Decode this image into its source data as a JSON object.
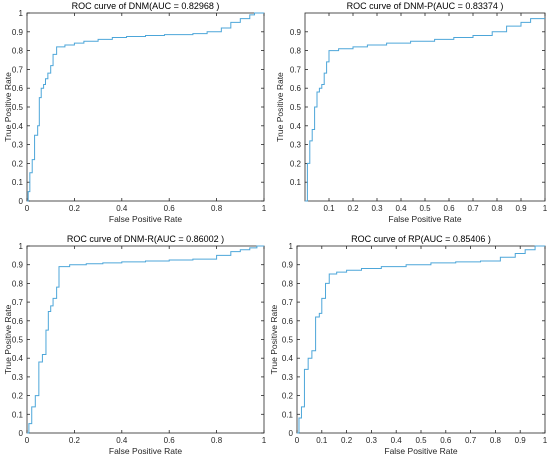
{
  "figure": {
    "background": "#ffffff",
    "axis_color": "#262626",
    "grid_color": "#d9d9d9"
  },
  "chart_data": [
    {
      "type": "line",
      "title": "ROC curve of DNM(AUC = 0.82968 )",
      "xlabel": "False Positive Rate",
      "ylabel": "True Positive Rate",
      "xlim": [
        0,
        1
      ],
      "ylim": [
        0,
        1
      ],
      "xticks": [
        0,
        0.2,
        0.4,
        0.6,
        0.8,
        1
      ],
      "xtick_labels": [
        "0",
        "0.2",
        "0.4",
        "0.6",
        "0.8",
        "1"
      ],
      "yticks": [
        0,
        0.1,
        0.2,
        0.3,
        0.4,
        0.5,
        0.6,
        0.7,
        0.8,
        0.9,
        1
      ],
      "ytick_labels": [
        "0",
        "0.1",
        "0.2",
        "0.3",
        "0.4",
        "0.5",
        "0.6",
        "0.7",
        "0.8",
        "0.9",
        "1"
      ],
      "grid": false,
      "color": "#4da6d9",
      "series": [
        {
          "x": [
            0,
            0.005,
            0.005,
            0.012,
            0.012,
            0.022,
            0.022,
            0.032,
            0.032,
            0.045,
            0.045,
            0.052,
            0.052,
            0.06,
            0.06,
            0.07,
            0.07,
            0.078,
            0.078,
            0.088,
            0.088,
            0.1,
            0.1,
            0.11,
            0.11,
            0.125,
            0.125,
            0.16,
            0.16,
            0.2,
            0.2,
            0.24,
            0.24,
            0.3,
            0.3,
            0.36,
            0.36,
            0.42,
            0.42,
            0.5,
            0.5,
            0.58,
            0.58,
            0.7,
            0.7,
            0.76,
            0.76,
            0.82,
            0.82,
            0.86,
            0.86,
            0.9,
            0.9,
            0.94,
            0.94,
            0.96,
            0.96,
            1
          ],
          "y": [
            0,
            0,
            0.05,
            0.05,
            0.15,
            0.15,
            0.22,
            0.22,
            0.35,
            0.35,
            0.4,
            0.4,
            0.55,
            0.55,
            0.6,
            0.6,
            0.62,
            0.62,
            0.65,
            0.65,
            0.68,
            0.68,
            0.72,
            0.72,
            0.78,
            0.78,
            0.82,
            0.82,
            0.83,
            0.83,
            0.84,
            0.84,
            0.85,
            0.85,
            0.86,
            0.86,
            0.87,
            0.87,
            0.875,
            0.875,
            0.88,
            0.88,
            0.885,
            0.885,
            0.89,
            0.89,
            0.9,
            0.9,
            0.92,
            0.92,
            0.95,
            0.95,
            0.97,
            0.97,
            0.99,
            0.99,
            1,
            1
          ]
        }
      ]
    },
    {
      "type": "line",
      "title": "ROC curve of DNM-P(AUC = 0.83374 )",
      "xlabel": "False Positive Rate",
      "ylabel": "True Positive Rate",
      "xlim": [
        0,
        1
      ],
      "ylim": [
        0,
        1
      ],
      "xticks": [
        0.1,
        0.2,
        0.3,
        0.4,
        0.5,
        0.6,
        0.7,
        0.8,
        0.9,
        1
      ],
      "xtick_labels": [
        "0.1",
        "0.2",
        "0.3",
        "0.4",
        "0.5",
        "0.6",
        "0.7",
        "0.8",
        "0.9",
        "1"
      ],
      "yticks": [
        0.1,
        0.2,
        0.3,
        0.4,
        0.5,
        0.6,
        0.7,
        0.8,
        0.9
      ],
      "ytick_labels": [
        "0.1",
        "0.2",
        "0.3",
        "0.4",
        "0.5",
        "0.6",
        "0.7",
        "0.8",
        "0.9"
      ],
      "grid": false,
      "color": "#4da6d9",
      "series": [
        {
          "x": [
            0,
            0.01,
            0.01,
            0.02,
            0.02,
            0.03,
            0.03,
            0.04,
            0.04,
            0.05,
            0.05,
            0.06,
            0.06,
            0.07,
            0.07,
            0.08,
            0.08,
            0.09,
            0.09,
            0.1,
            0.1,
            0.14,
            0.14,
            0.2,
            0.2,
            0.26,
            0.26,
            0.34,
            0.34,
            0.44,
            0.44,
            0.54,
            0.54,
            0.62,
            0.62,
            0.7,
            0.7,
            0.78,
            0.78,
            0.84,
            0.84,
            0.9,
            0.9,
            0.94,
            0.94,
            1
          ],
          "y": [
            0,
            0,
            0.2,
            0.2,
            0.32,
            0.32,
            0.38,
            0.38,
            0.5,
            0.5,
            0.58,
            0.58,
            0.6,
            0.6,
            0.62,
            0.62,
            0.68,
            0.68,
            0.74,
            0.74,
            0.8,
            0.8,
            0.81,
            0.81,
            0.82,
            0.82,
            0.83,
            0.83,
            0.84,
            0.84,
            0.85,
            0.85,
            0.86,
            0.86,
            0.87,
            0.87,
            0.88,
            0.88,
            0.9,
            0.9,
            0.93,
            0.93,
            0.95,
            0.95,
            0.97,
            0.97
          ]
        }
      ]
    },
    {
      "type": "line",
      "title": "ROC curve of DNM-R(AUC = 0.86002 )",
      "xlabel": "False Positive Rate",
      "ylabel": "True Positive Rate",
      "xlim": [
        0,
        1
      ],
      "ylim": [
        0,
        1
      ],
      "xticks": [
        0,
        0.2,
        0.4,
        0.6,
        0.8,
        1
      ],
      "xtick_labels": [
        "0",
        "0.2",
        "0.4",
        "0.6",
        "0.8",
        "1"
      ],
      "yticks": [
        0,
        0.1,
        0.2,
        0.3,
        0.4,
        0.5,
        0.6,
        0.7,
        0.8,
        0.9,
        1
      ],
      "ytick_labels": [
        "0",
        "0.1",
        "0.2",
        "0.3",
        "0.4",
        "0.5",
        "0.6",
        "0.7",
        "0.8",
        "0.9",
        "1"
      ],
      "grid": false,
      "color": "#4da6d9",
      "series": [
        {
          "x": [
            0,
            0.008,
            0.008,
            0.02,
            0.02,
            0.035,
            0.035,
            0.05,
            0.05,
            0.065,
            0.065,
            0.08,
            0.08,
            0.09,
            0.09,
            0.1,
            0.1,
            0.11,
            0.11,
            0.125,
            0.125,
            0.135,
            0.135,
            0.18,
            0.18,
            0.25,
            0.25,
            0.32,
            0.32,
            0.4,
            0.4,
            0.5,
            0.5,
            0.6,
            0.6,
            0.7,
            0.7,
            0.8,
            0.8,
            0.86,
            0.86,
            0.9,
            0.9,
            0.94,
            0.94,
            0.97,
            0.97,
            1
          ],
          "y": [
            0,
            0,
            0.05,
            0.05,
            0.14,
            0.14,
            0.2,
            0.2,
            0.38,
            0.38,
            0.42,
            0.42,
            0.55,
            0.55,
            0.65,
            0.65,
            0.68,
            0.68,
            0.72,
            0.72,
            0.78,
            0.78,
            0.89,
            0.89,
            0.9,
            0.9,
            0.905,
            0.905,
            0.91,
            0.91,
            0.915,
            0.915,
            0.92,
            0.92,
            0.925,
            0.925,
            0.93,
            0.93,
            0.95,
            0.95,
            0.97,
            0.97,
            0.98,
            0.98,
            0.99,
            0.99,
            1,
            1
          ]
        }
      ]
    },
    {
      "type": "line",
      "title": "ROC curve of RP(AUC = 0.85406 )",
      "xlabel": "False Positive Rate",
      "ylabel": "True Positive Rate",
      "xlim": [
        0,
        1
      ],
      "ylim": [
        0,
        1
      ],
      "xticks": [
        0,
        0.1,
        0.2,
        0.3,
        0.4,
        0.5,
        0.6,
        0.7,
        0.8,
        0.9,
        1
      ],
      "xtick_labels": [
        "0",
        "0.1",
        "0.2",
        "0.3",
        "0.4",
        "0.5",
        "0.6",
        "0.7",
        "0.8",
        "0.9",
        "1"
      ],
      "yticks": [
        0,
        0.1,
        0.2,
        0.3,
        0.4,
        0.5,
        0.6,
        0.7,
        0.8,
        0.9,
        1
      ],
      "ytick_labels": [
        "0",
        "0.1",
        "0.2",
        "0.3",
        "0.4",
        "0.5",
        "0.6",
        "0.7",
        "0.8",
        "0.9",
        "1"
      ],
      "grid": false,
      "color": "#4da6d9",
      "series": [
        {
          "x": [
            0,
            0.008,
            0.008,
            0.018,
            0.018,
            0.03,
            0.03,
            0.045,
            0.045,
            0.06,
            0.06,
            0.075,
            0.075,
            0.09,
            0.09,
            0.1,
            0.1,
            0.115,
            0.115,
            0.13,
            0.13,
            0.16,
            0.16,
            0.2,
            0.2,
            0.26,
            0.26,
            0.34,
            0.34,
            0.44,
            0.44,
            0.54,
            0.54,
            0.64,
            0.64,
            0.74,
            0.74,
            0.82,
            0.82,
            0.88,
            0.88,
            0.92,
            0.92,
            0.96,
            0.96,
            1
          ],
          "y": [
            0,
            0,
            0.08,
            0.08,
            0.14,
            0.14,
            0.34,
            0.34,
            0.4,
            0.4,
            0.44,
            0.44,
            0.62,
            0.62,
            0.64,
            0.64,
            0.72,
            0.72,
            0.8,
            0.8,
            0.85,
            0.85,
            0.86,
            0.86,
            0.87,
            0.87,
            0.88,
            0.88,
            0.89,
            0.89,
            0.9,
            0.9,
            0.91,
            0.91,
            0.915,
            0.915,
            0.92,
            0.92,
            0.94,
            0.94,
            0.96,
            0.96,
            0.98,
            0.98,
            1,
            1
          ]
        }
      ]
    }
  ]
}
